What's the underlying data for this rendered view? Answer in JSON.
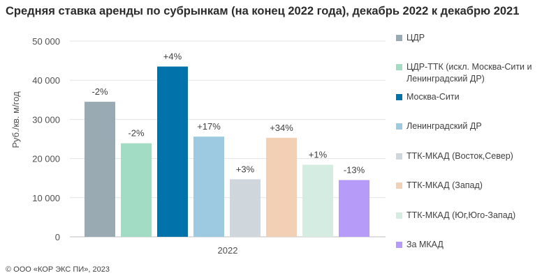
{
  "title": "Средняя ставка аренды по субрынкам (на конец 2022 года), декабрь 2022 к декабрю 2021",
  "footer": "© ООО «КОР ЭКС ПИ», 2023",
  "chart_data": {
    "type": "bar",
    "title": "Средняя ставка аренды по субрынкам (на конец 2022 года), декабрь 2022 к декабрю 2021",
    "xlabel": "",
    "ylabel": "Руб./кв. м/год",
    "categories": [
      "2022"
    ],
    "ylim": [
      0,
      50000
    ],
    "yticks": [
      0,
      10000,
      20000,
      30000,
      40000,
      50000
    ],
    "ytick_labels": [
      "0",
      "10 000",
      "20 000",
      "30 000",
      "40 000",
      "50 000"
    ],
    "grid": true,
    "legend_position": "right",
    "series": [
      {
        "name": "ЦДР",
        "values": [
          34500
        ],
        "label": "-2%",
        "color": "#9aaab3"
      },
      {
        "name": "ЦДР-ТТК (искл. Москва-Сити и Ленинградский ДР)",
        "values": [
          23900
        ],
        "label": "-2%",
        "color": "#a3dcc4"
      },
      {
        "name": "Москва-Сити",
        "values": [
          43500
        ],
        "label": "+4%",
        "color": "#0272ab"
      },
      {
        "name": "Ленинградский ДР",
        "values": [
          25600
        ],
        "label": "+17%",
        "color": "#9ecae1"
      },
      {
        "name": "ТТК-МКАД (Восток,Север)",
        "values": [
          14700
        ],
        "label": "+3%",
        "color": "#cfd6dc"
      },
      {
        "name": "ТТК-МКАД (Запад)",
        "values": [
          25300
        ],
        "label": "+34%",
        "color": "#f2d0b6"
      },
      {
        "name": "ТТК-МКАД (Юг,Юго-Запад)",
        "values": [
          18400
        ],
        "label": "+1%",
        "color": "#d4ece1"
      },
      {
        "name": "За МКАД",
        "values": [
          14500
        ],
        "label": "-13%",
        "color": "#b69bf9"
      }
    ]
  }
}
